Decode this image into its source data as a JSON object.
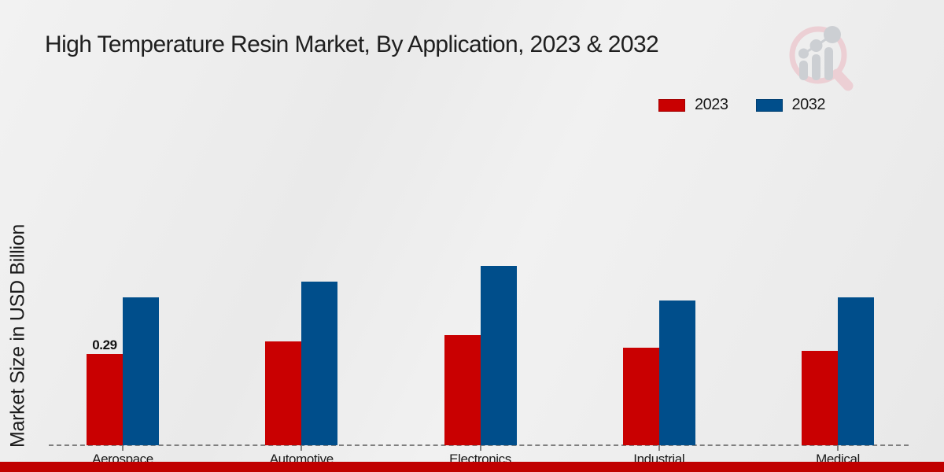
{
  "chart_data": {
    "type": "bar",
    "title": "High Temperature Resin Market, By Application, 2023 & 2032",
    "ylabel": "Market Size in USD Billion",
    "xlabel": "",
    "categories": [
      "Aerospace",
      "Automotive",
      "Electronics",
      "Industrial",
      "Medical"
    ],
    "series": [
      {
        "name": "2023",
        "color": "#c90001",
        "values": [
          0.29,
          0.33,
          0.35,
          0.31,
          0.3
        ]
      },
      {
        "name": "2032",
        "color": "#004e8b",
        "values": [
          0.47,
          0.52,
          0.57,
          0.46,
          0.47
        ]
      }
    ],
    "value_labels": [
      {
        "series_index": 0,
        "category_index": 0,
        "text": "0.29"
      }
    ],
    "legend_position": "top-right",
    "grid": false,
    "baseline_style": "dashed",
    "ylim": [
      0,
      1.1
    ]
  },
  "colors": {
    "footer_bar": "#c00000",
    "baseline": "#7f7f7f",
    "text": "#1a1a1a"
  },
  "icons": {
    "logo": "magnifier-bar-chart-watermark-icon"
  }
}
